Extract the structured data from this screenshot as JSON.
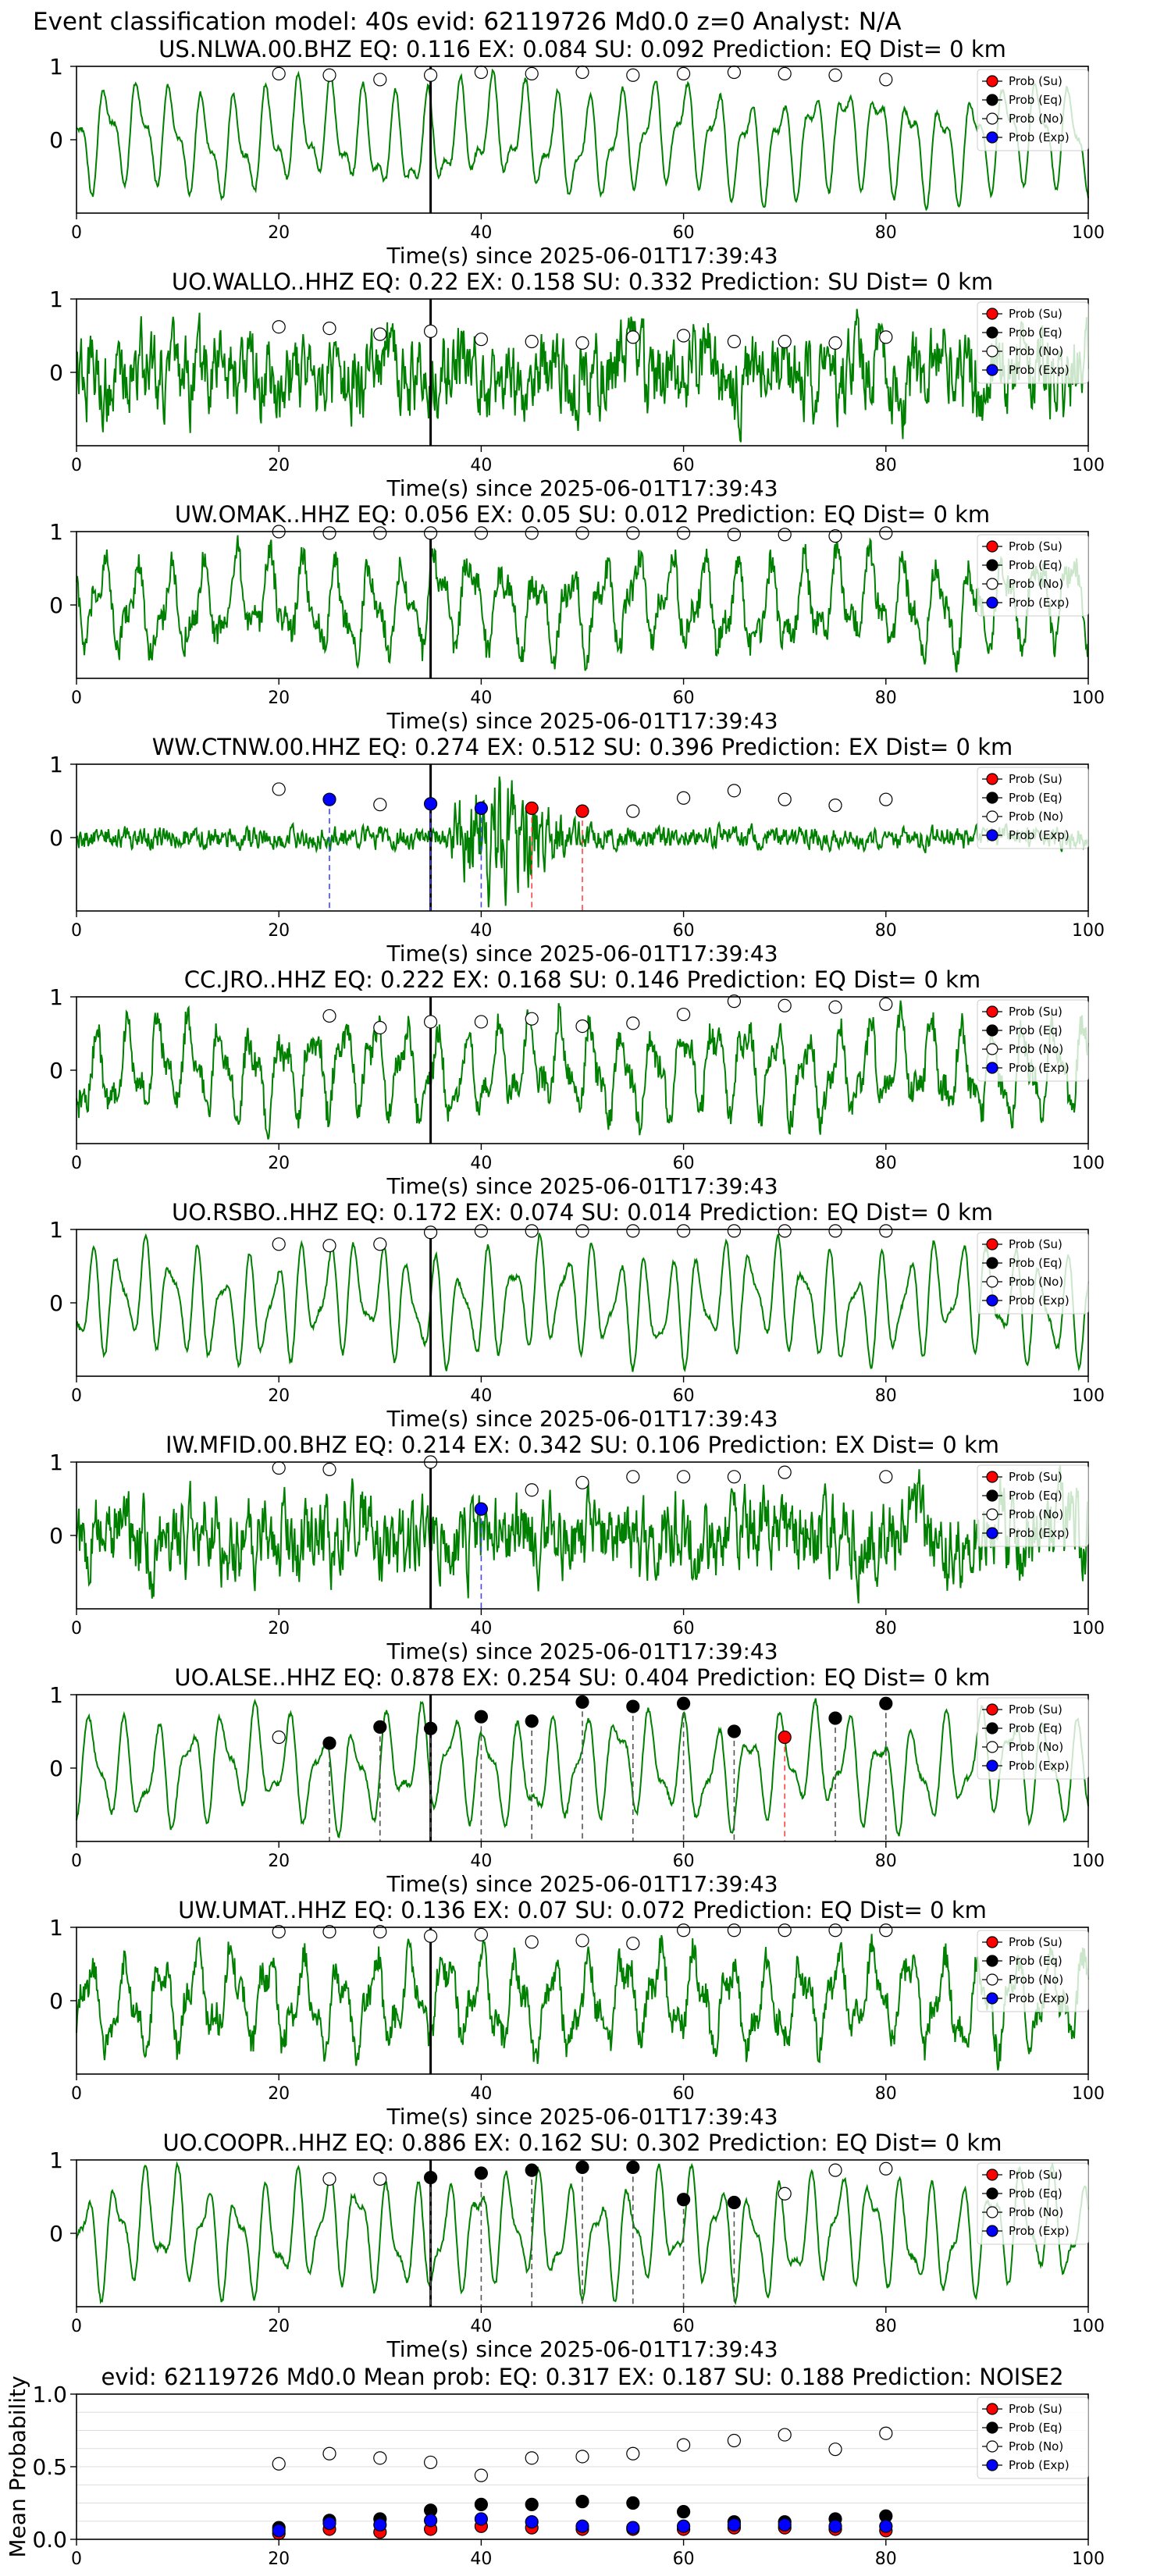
{
  "figure_title": "Event classification model: 40s evid: 62119726 Md0.0 z=0 Analyst: N/A",
  "colors": {
    "waveform": "#008000",
    "su": "#ff0000",
    "eq": "#000000",
    "no": "#ffffff",
    "exp": "#0000ff",
    "onset_line": "#000000",
    "grid": "#dddddd"
  },
  "legend_labels": [
    "Prob (Su)",
    "Prob (Eq)",
    "Prob (No)",
    "Prob (Exp)"
  ],
  "chart_data": [
    {
      "type": "line",
      "station": "US.NLWA.00.BHZ",
      "title": "US.NLWA.00.BHZ   EQ: 0.116  EX: 0.084  SU: 0.092   Prediction: EQ    Dist= 0 km",
      "xlabel": "Time(s) since 2025-06-01T17:39:43",
      "ylabel": "",
      "xlim": [
        0,
        100
      ],
      "ylim": [
        -1,
        1
      ],
      "xticks": [
        0,
        20,
        40,
        60,
        80,
        100
      ],
      "yticks": [
        0,
        1
      ],
      "onset": 35,
      "legend": "top-right",
      "waveform_style": "smooth",
      "points": [
        {
          "x": 20,
          "y": 0.9,
          "cls": "no"
        },
        {
          "x": 25,
          "y": 0.88,
          "cls": "no"
        },
        {
          "x": 30,
          "y": 0.82,
          "cls": "no"
        },
        {
          "x": 35,
          "y": 0.88,
          "cls": "no"
        },
        {
          "x": 40,
          "y": 0.92,
          "cls": "no"
        },
        {
          "x": 45,
          "y": 0.9,
          "cls": "no"
        },
        {
          "x": 50,
          "y": 0.92,
          "cls": "no"
        },
        {
          "x": 55,
          "y": 0.88,
          "cls": "no"
        },
        {
          "x": 60,
          "y": 0.9,
          "cls": "no"
        },
        {
          "x": 65,
          "y": 0.92,
          "cls": "no"
        },
        {
          "x": 70,
          "y": 0.9,
          "cls": "no"
        },
        {
          "x": 75,
          "y": 0.88,
          "cls": "no"
        },
        {
          "x": 80,
          "y": 0.82,
          "cls": "no"
        }
      ]
    },
    {
      "type": "line",
      "station": "UO.WALLO..HHZ",
      "title": "UO.WALLO..HHZ   EQ: 0.22  EX: 0.158  SU: 0.332   Prediction: SU    Dist= 0 km",
      "xlabel": "Time(s) since 2025-06-01T17:39:43",
      "ylabel": "",
      "xlim": [
        0,
        100
      ],
      "ylim": [
        -1,
        1
      ],
      "xticks": [
        0,
        20,
        40,
        60,
        80,
        100
      ],
      "yticks": [
        0,
        1
      ],
      "onset": 35,
      "legend": "top-right",
      "waveform_style": "noisy",
      "points": [
        {
          "x": 20,
          "y": 0.62,
          "cls": "no"
        },
        {
          "x": 25,
          "y": 0.6,
          "cls": "no"
        },
        {
          "x": 30,
          "y": 0.52,
          "cls": "no"
        },
        {
          "x": 35,
          "y": 0.56,
          "cls": "no"
        },
        {
          "x": 40,
          "y": 0.45,
          "cls": "no"
        },
        {
          "x": 45,
          "y": 0.42,
          "cls": "no"
        },
        {
          "x": 50,
          "y": 0.4,
          "cls": "no"
        },
        {
          "x": 55,
          "y": 0.48,
          "cls": "no"
        },
        {
          "x": 60,
          "y": 0.5,
          "cls": "no"
        },
        {
          "x": 65,
          "y": 0.42,
          "cls": "no"
        },
        {
          "x": 70,
          "y": 0.42,
          "cls": "no"
        },
        {
          "x": 75,
          "y": 0.4,
          "cls": "no"
        },
        {
          "x": 80,
          "y": 0.48,
          "cls": "no"
        }
      ]
    },
    {
      "type": "line",
      "station": "UW.OMAK..HHZ",
      "title": "UW.OMAK..HHZ   EQ: 0.056  EX: 0.05  SU: 0.012   Prediction: EQ    Dist= 0 km",
      "xlabel": "Time(s) since 2025-06-01T17:39:43",
      "ylabel": "",
      "xlim": [
        0,
        100
      ],
      "ylim": [
        -1,
        1
      ],
      "xticks": [
        0,
        20,
        40,
        60,
        80,
        100
      ],
      "yticks": [
        0,
        1
      ],
      "onset": 35,
      "legend": "top-right",
      "waveform_style": "rough",
      "points": [
        {
          "x": 20,
          "y": 1.0,
          "cls": "no"
        },
        {
          "x": 25,
          "y": 0.98,
          "cls": "no"
        },
        {
          "x": 30,
          "y": 0.98,
          "cls": "no"
        },
        {
          "x": 35,
          "y": 0.98,
          "cls": "no"
        },
        {
          "x": 40,
          "y": 0.98,
          "cls": "no"
        },
        {
          "x": 45,
          "y": 0.98,
          "cls": "no"
        },
        {
          "x": 50,
          "y": 0.98,
          "cls": "no"
        },
        {
          "x": 55,
          "y": 0.98,
          "cls": "no"
        },
        {
          "x": 60,
          "y": 0.98,
          "cls": "no"
        },
        {
          "x": 65,
          "y": 0.96,
          "cls": "no"
        },
        {
          "x": 70,
          "y": 0.96,
          "cls": "no"
        },
        {
          "x": 75,
          "y": 0.94,
          "cls": "no"
        },
        {
          "x": 80,
          "y": 0.98,
          "cls": "no"
        }
      ]
    },
    {
      "type": "line",
      "station": "WW.CTNW.00.HHZ",
      "title": "WW.CTNW.00.HHZ   EQ: 0.274  EX: 0.512  SU: 0.396   Prediction: EX    Dist= 0 km",
      "xlabel": "Time(s) since 2025-06-01T17:39:43",
      "ylabel": "",
      "xlim": [
        0,
        100
      ],
      "ylim": [
        -1,
        1
      ],
      "xticks": [
        0,
        20,
        40,
        60,
        80,
        100
      ],
      "yticks": [
        0,
        1
      ],
      "onset": 35,
      "legend": "top-right",
      "waveform_style": "burst",
      "points": [
        {
          "x": 20,
          "y": 0.66,
          "cls": "no"
        },
        {
          "x": 25,
          "y": 0.52,
          "cls": "exp"
        },
        {
          "x": 30,
          "y": 0.45,
          "cls": "no"
        },
        {
          "x": 35,
          "y": 0.46,
          "cls": "exp"
        },
        {
          "x": 40,
          "y": 0.4,
          "cls": "exp"
        },
        {
          "x": 45,
          "y": 0.4,
          "cls": "su"
        },
        {
          "x": 50,
          "y": 0.36,
          "cls": "su"
        },
        {
          "x": 55,
          "y": 0.36,
          "cls": "no"
        },
        {
          "x": 60,
          "y": 0.54,
          "cls": "no"
        },
        {
          "x": 65,
          "y": 0.64,
          "cls": "no"
        },
        {
          "x": 70,
          "y": 0.52,
          "cls": "no"
        },
        {
          "x": 75,
          "y": 0.44,
          "cls": "no"
        },
        {
          "x": 80,
          "y": 0.52,
          "cls": "no"
        }
      ]
    },
    {
      "type": "line",
      "station": "CC.JRO..HHZ",
      "title": "CC.JRO..HHZ   EQ: 0.222  EX: 0.168  SU: 0.146   Prediction: EQ    Dist= 0 km",
      "xlabel": "Time(s) since 2025-06-01T17:39:43",
      "ylabel": "",
      "xlim": [
        0,
        100
      ],
      "ylim": [
        -1,
        1
      ],
      "xticks": [
        0,
        20,
        40,
        60,
        80,
        100
      ],
      "yticks": [
        0,
        1
      ],
      "onset": 35,
      "legend": "top-right",
      "waveform_style": "rough",
      "points": [
        {
          "x": 25,
          "y": 0.74,
          "cls": "no"
        },
        {
          "x": 30,
          "y": 0.58,
          "cls": "no"
        },
        {
          "x": 35,
          "y": 0.66,
          "cls": "no"
        },
        {
          "x": 40,
          "y": 0.66,
          "cls": "no"
        },
        {
          "x": 45,
          "y": 0.7,
          "cls": "no"
        },
        {
          "x": 50,
          "y": 0.6,
          "cls": "no"
        },
        {
          "x": 55,
          "y": 0.64,
          "cls": "no"
        },
        {
          "x": 60,
          "y": 0.76,
          "cls": "no"
        },
        {
          "x": 65,
          "y": 0.94,
          "cls": "no"
        },
        {
          "x": 70,
          "y": 0.88,
          "cls": "no"
        },
        {
          "x": 75,
          "y": 0.86,
          "cls": "no"
        },
        {
          "x": 80,
          "y": 0.9,
          "cls": "no"
        }
      ]
    },
    {
      "type": "line",
      "station": "UO.RSBO..HHZ",
      "title": "UO.RSBO..HHZ   EQ: 0.172  EX: 0.074  SU: 0.014   Prediction: EQ    Dist= 0 km",
      "xlabel": "Time(s) since 2025-06-01T17:39:43",
      "ylabel": "",
      "xlim": [
        0,
        100
      ],
      "ylim": [
        -1,
        1
      ],
      "xticks": [
        0,
        20,
        40,
        60,
        80,
        100
      ],
      "yticks": [
        0,
        1
      ],
      "onset": 35,
      "legend": "top-right",
      "waveform_style": "smooth",
      "points": [
        {
          "x": 20,
          "y": 0.8,
          "cls": "no"
        },
        {
          "x": 25,
          "y": 0.78,
          "cls": "no"
        },
        {
          "x": 30,
          "y": 0.8,
          "cls": "no"
        },
        {
          "x": 35,
          "y": 0.96,
          "cls": "no"
        },
        {
          "x": 40,
          "y": 0.98,
          "cls": "no"
        },
        {
          "x": 45,
          "y": 0.98,
          "cls": "no"
        },
        {
          "x": 50,
          "y": 0.98,
          "cls": "no"
        },
        {
          "x": 55,
          "y": 0.98,
          "cls": "no"
        },
        {
          "x": 60,
          "y": 0.98,
          "cls": "no"
        },
        {
          "x": 65,
          "y": 0.98,
          "cls": "no"
        },
        {
          "x": 70,
          "y": 0.98,
          "cls": "no"
        },
        {
          "x": 75,
          "y": 0.98,
          "cls": "no"
        },
        {
          "x": 80,
          "y": 0.98,
          "cls": "no"
        }
      ]
    },
    {
      "type": "line",
      "station": "IW.MFID.00.BHZ",
      "title": "IW.MFID.00.BHZ   EQ: 0.214  EX: 0.342  SU: 0.106   Prediction: EX    Dist= 0 km",
      "xlabel": "Time(s) since 2025-06-01T17:39:43",
      "ylabel": "",
      "xlim": [
        0,
        100
      ],
      "ylim": [
        -1,
        1
      ],
      "xticks": [
        0,
        20,
        40,
        60,
        80,
        100
      ],
      "yticks": [
        0,
        1
      ],
      "onset": 35,
      "legend": "top-right",
      "waveform_style": "noisy",
      "points": [
        {
          "x": 20,
          "y": 0.92,
          "cls": "no"
        },
        {
          "x": 25,
          "y": 0.9,
          "cls": "no"
        },
        {
          "x": 35,
          "y": 1.0,
          "cls": "no"
        },
        {
          "x": 40,
          "y": 0.36,
          "cls": "exp"
        },
        {
          "x": 45,
          "y": 0.62,
          "cls": "no"
        },
        {
          "x": 50,
          "y": 0.72,
          "cls": "no"
        },
        {
          "x": 55,
          "y": 0.8,
          "cls": "no"
        },
        {
          "x": 60,
          "y": 0.8,
          "cls": "no"
        },
        {
          "x": 65,
          "y": 0.8,
          "cls": "no"
        },
        {
          "x": 70,
          "y": 0.86,
          "cls": "no"
        },
        {
          "x": 80,
          "y": 0.8,
          "cls": "no"
        }
      ]
    },
    {
      "type": "line",
      "station": "UO.ALSE..HHZ",
      "title": "UO.ALSE..HHZ   EQ: 0.878  EX: 0.254  SU: 0.404   Prediction: EQ    Dist= 0 km",
      "xlabel": "Time(s) since 2025-06-01T17:39:43",
      "ylabel": "",
      "xlim": [
        0,
        100
      ],
      "ylim": [
        -1,
        1
      ],
      "xticks": [
        0,
        20,
        40,
        60,
        80,
        100
      ],
      "yticks": [
        0,
        1
      ],
      "onset": 35,
      "legend": "top-right",
      "waveform_style": "smooth",
      "points": [
        {
          "x": 20,
          "y": 0.42,
          "cls": "no"
        },
        {
          "x": 25,
          "y": 0.34,
          "cls": "eq"
        },
        {
          "x": 30,
          "y": 0.56,
          "cls": "eq"
        },
        {
          "x": 35,
          "y": 0.54,
          "cls": "eq"
        },
        {
          "x": 40,
          "y": 0.7,
          "cls": "eq"
        },
        {
          "x": 45,
          "y": 0.64,
          "cls": "eq"
        },
        {
          "x": 50,
          "y": 0.9,
          "cls": "eq"
        },
        {
          "x": 55,
          "y": 0.84,
          "cls": "eq"
        },
        {
          "x": 60,
          "y": 0.88,
          "cls": "eq"
        },
        {
          "x": 65,
          "y": 0.5,
          "cls": "eq"
        },
        {
          "x": 70,
          "y": 0.42,
          "cls": "su"
        },
        {
          "x": 75,
          "y": 0.68,
          "cls": "eq"
        },
        {
          "x": 80,
          "y": 0.88,
          "cls": "eq"
        }
      ]
    },
    {
      "type": "line",
      "station": "UW.UMAT..HHZ",
      "title": "UW.UMAT..HHZ   EQ: 0.136  EX: 0.07  SU: 0.072   Prediction: EQ    Dist= 0 km",
      "xlabel": "Time(s) since 2025-06-01T17:39:43",
      "ylabel": "",
      "xlim": [
        0,
        100
      ],
      "ylim": [
        -1,
        1
      ],
      "xticks": [
        0,
        20,
        40,
        60,
        80,
        100
      ],
      "yticks": [
        0,
        1
      ],
      "onset": 35,
      "legend": "top-right",
      "waveform_style": "rough",
      "points": [
        {
          "x": 20,
          "y": 0.94,
          "cls": "no"
        },
        {
          "x": 25,
          "y": 0.94,
          "cls": "no"
        },
        {
          "x": 30,
          "y": 0.94,
          "cls": "no"
        },
        {
          "x": 35,
          "y": 0.88,
          "cls": "no"
        },
        {
          "x": 40,
          "y": 0.9,
          "cls": "no"
        },
        {
          "x": 45,
          "y": 0.8,
          "cls": "no"
        },
        {
          "x": 50,
          "y": 0.82,
          "cls": "no"
        },
        {
          "x": 55,
          "y": 0.78,
          "cls": "no"
        },
        {
          "x": 60,
          "y": 0.96,
          "cls": "no"
        },
        {
          "x": 65,
          "y": 0.96,
          "cls": "no"
        },
        {
          "x": 70,
          "y": 0.96,
          "cls": "no"
        },
        {
          "x": 75,
          "y": 0.96,
          "cls": "no"
        },
        {
          "x": 80,
          "y": 0.96,
          "cls": "no"
        }
      ]
    },
    {
      "type": "line",
      "station": "UO.COOPR..HHZ",
      "title": "UO.COOPR..HHZ   EQ: 0.886  EX: 0.162  SU: 0.302   Prediction: EQ    Dist= 0 km",
      "xlabel": "Time(s) since 2025-06-01T17:39:43",
      "ylabel": "",
      "xlim": [
        0,
        100
      ],
      "ylim": [
        -1,
        1
      ],
      "xticks": [
        0,
        20,
        40,
        60,
        80,
        100
      ],
      "yticks": [
        0,
        1
      ],
      "onset": 35,
      "legend": "top-right",
      "waveform_style": "smooth",
      "points": [
        {
          "x": 25,
          "y": 0.74,
          "cls": "no"
        },
        {
          "x": 30,
          "y": 0.74,
          "cls": "no"
        },
        {
          "x": 35,
          "y": 0.76,
          "cls": "eq"
        },
        {
          "x": 40,
          "y": 0.82,
          "cls": "eq"
        },
        {
          "x": 45,
          "y": 0.86,
          "cls": "eq"
        },
        {
          "x": 50,
          "y": 0.9,
          "cls": "eq"
        },
        {
          "x": 55,
          "y": 0.9,
          "cls": "eq"
        },
        {
          "x": 60,
          "y": 0.46,
          "cls": "eq"
        },
        {
          "x": 65,
          "y": 0.42,
          "cls": "eq"
        },
        {
          "x": 70,
          "y": 0.54,
          "cls": "no"
        },
        {
          "x": 75,
          "y": 0.86,
          "cls": "no"
        },
        {
          "x": 80,
          "y": 0.88,
          "cls": "no"
        }
      ]
    },
    {
      "type": "scatter",
      "title": "evid: 62119726  Md0.0   Mean prob:   EQ: 0.317  EX: 0.187  SU: 0.188   Prediction: NOISE2",
      "xlabel": "",
      "ylabel": "Mean Probability",
      "xlim": [
        0,
        100
      ],
      "ylim": [
        0,
        1
      ],
      "xticks": [
        0,
        20,
        40,
        60,
        80,
        100
      ],
      "yticks": [
        0.0,
        0.5,
        1.0
      ],
      "ytick_labels": [
        "0.0",
        "0.5",
        "1.0"
      ],
      "legend": "top-right",
      "grid": true,
      "series": [
        {
          "name": "Prob (Su)",
          "cls": "su",
          "x": [
            20,
            25,
            30,
            35,
            40,
            45,
            50,
            55,
            60,
            65,
            70,
            75,
            80
          ],
          "y": [
            0.04,
            0.07,
            0.05,
            0.07,
            0.09,
            0.08,
            0.07,
            0.07,
            0.07,
            0.08,
            0.08,
            0.07,
            0.06
          ]
        },
        {
          "name": "Prob (Eq)",
          "cls": "eq",
          "x": [
            20,
            25,
            30,
            35,
            40,
            45,
            50,
            55,
            60,
            65,
            70,
            75,
            80
          ],
          "y": [
            0.08,
            0.13,
            0.14,
            0.2,
            0.24,
            0.24,
            0.26,
            0.25,
            0.19,
            0.12,
            0.12,
            0.14,
            0.16
          ]
        },
        {
          "name": "Prob (No)",
          "cls": "no",
          "x": [
            20,
            25,
            30,
            35,
            40,
            45,
            50,
            55,
            60,
            65,
            70,
            75,
            80
          ],
          "y": [
            0.52,
            0.59,
            0.56,
            0.53,
            0.44,
            0.56,
            0.57,
            0.59,
            0.65,
            0.68,
            0.72,
            0.62,
            0.73
          ]
        },
        {
          "name": "Prob (Exp)",
          "cls": "exp",
          "x": [
            20,
            25,
            30,
            35,
            40,
            45,
            50,
            55,
            60,
            65,
            70,
            75,
            80
          ],
          "y": [
            0.06,
            0.11,
            0.1,
            0.13,
            0.14,
            0.12,
            0.09,
            0.08,
            0.09,
            0.1,
            0.1,
            0.09,
            0.09
          ]
        }
      ]
    }
  ]
}
